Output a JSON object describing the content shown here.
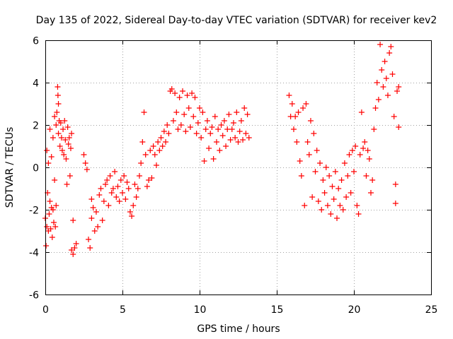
{
  "chart_data": {
    "type": "scatter",
    "title": "Day 135 of 2022, Sidereal Day-to-day VTEC variation (SDTVAR) for receiver kev2",
    "xlabel": "GPS time / hours",
    "ylabel": "SDTVAR / TECUs",
    "xlim": [
      0,
      25
    ],
    "ylim": [
      -6,
      6
    ],
    "x_ticks": [
      "0",
      "5",
      "10",
      "15",
      "20",
      "25"
    ],
    "y_ticks": [
      "-6",
      "-4",
      "-2",
      "0",
      "2",
      "4",
      "6"
    ],
    "grid": true,
    "marker": "+",
    "series": [
      {
        "name": "SDTVAR",
        "color": "#ff0000",
        "points": [
          [
            0.0,
            -2.4
          ],
          [
            0.05,
            -3.7
          ],
          [
            0.1,
            -2.8
          ],
          [
            0.1,
            0.8
          ],
          [
            0.15,
            -1.2
          ],
          [
            0.2,
            -3.0
          ],
          [
            0.2,
            0.2
          ],
          [
            0.25,
            -2.2
          ],
          [
            0.3,
            -1.6
          ],
          [
            0.3,
            1.8
          ],
          [
            0.35,
            -2.9
          ],
          [
            0.4,
            -1.9
          ],
          [
            0.4,
            0.5
          ],
          [
            0.45,
            -3.3
          ],
          [
            0.5,
            -2.0
          ],
          [
            0.5,
            1.4
          ],
          [
            0.55,
            -2.6
          ],
          [
            0.6,
            2.4
          ],
          [
            0.6,
            -0.6
          ],
          [
            0.65,
            -2.8
          ],
          [
            0.7,
            2.0
          ],
          [
            0.7,
            -1.8
          ],
          [
            0.75,
            2.6
          ],
          [
            0.8,
            3.8
          ],
          [
            0.82,
            3.4
          ],
          [
            0.85,
            1.6
          ],
          [
            0.85,
            3.0
          ],
          [
            0.9,
            2.2
          ],
          [
            0.95,
            1.0
          ],
          [
            1.0,
            2.1
          ],
          [
            1.05,
            1.4
          ],
          [
            1.1,
            0.8
          ],
          [
            1.15,
            1.8
          ],
          [
            1.2,
            0.6
          ],
          [
            1.25,
            2.2
          ],
          [
            1.3,
            1.3
          ],
          [
            1.35,
            0.4
          ],
          [
            1.4,
            -0.8
          ],
          [
            1.45,
            1.9
          ],
          [
            1.5,
            1.1
          ],
          [
            1.55,
            1.4
          ],
          [
            1.6,
            -0.4
          ],
          [
            1.65,
            0.9
          ],
          [
            1.7,
            1.6
          ],
          [
            1.8,
            -2.5
          ],
          [
            1.7,
            -3.9
          ],
          [
            1.8,
            -4.1
          ],
          [
            1.9,
            -3.8
          ],
          [
            2.0,
            -3.6
          ],
          [
            2.5,
            0.6
          ],
          [
            2.6,
            0.2
          ],
          [
            2.7,
            -0.1
          ],
          [
            2.8,
            -3.4
          ],
          [
            2.9,
            -3.8
          ],
          [
            3.0,
            -2.4
          ],
          [
            3.0,
            -1.5
          ],
          [
            3.1,
            -1.9
          ],
          [
            3.2,
            -3.0
          ],
          [
            3.3,
            -2.1
          ],
          [
            3.4,
            -2.8
          ],
          [
            3.5,
            -1.3
          ],
          [
            3.6,
            -1.0
          ],
          [
            3.7,
            -2.5
          ],
          [
            3.8,
            -1.6
          ],
          [
            3.9,
            -0.8
          ],
          [
            4.0,
            -0.6
          ],
          [
            4.1,
            -1.8
          ],
          [
            4.2,
            -0.4
          ],
          [
            4.3,
            -1.2
          ],
          [
            4.4,
            -1.0
          ],
          [
            4.5,
            -0.2
          ],
          [
            4.6,
            -1.4
          ],
          [
            4.7,
            -0.9
          ],
          [
            4.8,
            -1.6
          ],
          [
            4.9,
            -0.6
          ],
          [
            5.0,
            -1.2
          ],
          [
            5.1,
            -0.4
          ],
          [
            5.2,
            -1.5
          ],
          [
            5.3,
            -0.7
          ],
          [
            5.4,
            -1.0
          ],
          [
            5.5,
            -2.1
          ],
          [
            5.6,
            -2.3
          ],
          [
            5.7,
            -1.8
          ],
          [
            5.8,
            -0.8
          ],
          [
            5.9,
            -1.4
          ],
          [
            6.0,
            -1.0
          ],
          [
            6.1,
            -0.4
          ],
          [
            6.2,
            0.2
          ],
          [
            6.3,
            1.2
          ],
          [
            6.4,
            2.6
          ],
          [
            6.5,
            0.6
          ],
          [
            6.6,
            -0.9
          ],
          [
            6.7,
            -0.6
          ],
          [
            6.8,
            0.8
          ],
          [
            6.9,
            -0.5
          ],
          [
            7.0,
            1.0
          ],
          [
            7.1,
            0.6
          ],
          [
            7.2,
            0.1
          ],
          [
            7.3,
            1.2
          ],
          [
            7.4,
            0.8
          ],
          [
            7.5,
            1.4
          ],
          [
            7.6,
            1.0
          ],
          [
            7.7,
            1.7
          ],
          [
            7.8,
            1.2
          ],
          [
            7.9,
            2.0
          ],
          [
            8.0,
            1.6
          ],
          [
            8.1,
            3.6
          ],
          [
            8.2,
            3.7
          ],
          [
            8.3,
            2.2
          ],
          [
            8.4,
            3.5
          ],
          [
            8.5,
            2.6
          ],
          [
            8.6,
            1.8
          ],
          [
            8.7,
            3.3
          ],
          [
            8.8,
            2.0
          ],
          [
            8.9,
            3.6
          ],
          [
            9.0,
            2.5
          ],
          [
            9.1,
            1.7
          ],
          [
            9.2,
            3.4
          ],
          [
            9.3,
            2.8
          ],
          [
            9.4,
            1.9
          ],
          [
            9.5,
            3.5
          ],
          [
            9.6,
            2.4
          ],
          [
            9.7,
            3.3
          ],
          [
            9.8,
            1.6
          ],
          [
            9.9,
            2.1
          ],
          [
            10.0,
            2.8
          ],
          [
            10.1,
            1.4
          ],
          [
            10.2,
            2.6
          ],
          [
            10.3,
            0.3
          ],
          [
            10.4,
            1.8
          ],
          [
            10.5,
            2.2
          ],
          [
            10.6,
            0.9
          ],
          [
            10.7,
            1.6
          ],
          [
            10.8,
            1.9
          ],
          [
            10.9,
            0.4
          ],
          [
            11.0,
            2.4
          ],
          [
            11.1,
            1.2
          ],
          [
            11.2,
            1.8
          ],
          [
            11.3,
            0.8
          ],
          [
            11.4,
            2.0
          ],
          [
            11.5,
            1.5
          ],
          [
            11.6,
            2.2
          ],
          [
            11.7,
            1.0
          ],
          [
            11.8,
            1.8
          ],
          [
            11.9,
            2.5
          ],
          [
            12.0,
            1.3
          ],
          [
            12.1,
            1.8
          ],
          [
            12.2,
            2.1
          ],
          [
            12.3,
            1.4
          ],
          [
            12.4,
            2.6
          ],
          [
            12.5,
            1.2
          ],
          [
            12.6,
            1.7
          ],
          [
            12.7,
            2.2
          ],
          [
            12.8,
            1.3
          ],
          [
            12.9,
            2.8
          ],
          [
            13.0,
            1.6
          ],
          [
            13.1,
            2.5
          ],
          [
            13.2,
            1.4
          ],
          [
            15.8,
            3.4
          ],
          [
            15.9,
            2.4
          ],
          [
            16.0,
            3.0
          ],
          [
            16.1,
            1.8
          ],
          [
            16.2,
            2.4
          ],
          [
            16.3,
            1.2
          ],
          [
            16.4,
            2.6
          ],
          [
            16.5,
            0.3
          ],
          [
            16.6,
            -0.4
          ],
          [
            16.7,
            2.8
          ],
          [
            16.8,
            -1.8
          ],
          [
            16.9,
            3.0
          ],
          [
            17.0,
            1.2
          ],
          [
            17.1,
            0.6
          ],
          [
            17.2,
            2.2
          ],
          [
            17.3,
            -1.4
          ],
          [
            17.4,
            1.6
          ],
          [
            17.5,
            -0.2
          ],
          [
            17.6,
            0.8
          ],
          [
            17.7,
            -1.6
          ],
          [
            17.8,
            0.2
          ],
          [
            17.9,
            -2.0
          ],
          [
            18.0,
            -0.6
          ],
          [
            18.1,
            -1.2
          ],
          [
            18.2,
            0.0
          ],
          [
            18.3,
            -1.8
          ],
          [
            18.4,
            -0.4
          ],
          [
            18.5,
            -2.2
          ],
          [
            18.6,
            -0.9
          ],
          [
            18.7,
            -1.5
          ],
          [
            18.8,
            -0.2
          ],
          [
            18.9,
            -2.4
          ],
          [
            19.0,
            -1.0
          ],
          [
            19.1,
            -1.8
          ],
          [
            19.2,
            -0.6
          ],
          [
            19.3,
            -2.0
          ],
          [
            19.4,
            0.2
          ],
          [
            19.5,
            -1.4
          ],
          [
            19.6,
            -0.4
          ],
          [
            19.7,
            0.6
          ],
          [
            19.8,
            -1.2
          ],
          [
            19.9,
            0.8
          ],
          [
            20.0,
            -0.2
          ],
          [
            20.1,
            1.0
          ],
          [
            20.2,
            -1.8
          ],
          [
            20.3,
            -2.2
          ],
          [
            20.4,
            0.6
          ],
          [
            20.5,
            2.6
          ],
          [
            20.6,
            0.9
          ],
          [
            20.7,
            1.2
          ],
          [
            20.8,
            -0.4
          ],
          [
            20.9,
            0.8
          ],
          [
            21.0,
            0.4
          ],
          [
            21.1,
            -1.2
          ],
          [
            21.2,
            -0.6
          ],
          [
            21.3,
            1.8
          ],
          [
            21.4,
            2.8
          ],
          [
            21.5,
            4.0
          ],
          [
            21.6,
            3.2
          ],
          [
            21.7,
            5.8
          ],
          [
            21.8,
            4.6
          ],
          [
            21.9,
            3.8
          ],
          [
            22.0,
            5.0
          ],
          [
            22.1,
            4.2
          ],
          [
            22.2,
            3.4
          ],
          [
            22.3,
            5.4
          ],
          [
            22.4,
            5.7
          ],
          [
            22.5,
            4.4
          ],
          [
            22.6,
            2.4
          ],
          [
            22.7,
            -0.8
          ],
          [
            22.7,
            -1.7
          ],
          [
            22.8,
            3.6
          ],
          [
            22.9,
            3.8
          ],
          [
            22.9,
            1.9
          ]
        ]
      }
    ]
  }
}
